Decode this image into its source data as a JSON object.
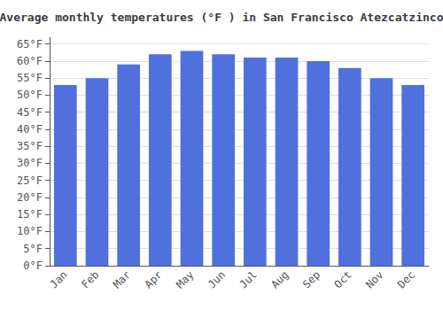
{
  "chart_data": {
    "type": "bar",
    "title": "Average monthly temperatures (°F ) in San Francisco Atezcatzinco",
    "categories": [
      "Jan",
      "Feb",
      "Mar",
      "Apr",
      "May",
      "Jun",
      "Jul",
      "Aug",
      "Sep",
      "Oct",
      "Nov",
      "Dec"
    ],
    "values": [
      53,
      55,
      59,
      62,
      63,
      62,
      61,
      61,
      60,
      58,
      55,
      53
    ],
    "ylim": [
      0,
      67
    ],
    "yticks": [
      {
        "value": 0,
        "label": "0°F"
      },
      {
        "value": 5,
        "label": "5°F"
      },
      {
        "value": 10,
        "label": "10°F"
      },
      {
        "value": 15,
        "label": "15°F"
      },
      {
        "value": 20,
        "label": "20°F"
      },
      {
        "value": 25,
        "label": "25°F"
      },
      {
        "value": 30,
        "label": "30°F"
      },
      {
        "value": 35,
        "label": "35°F"
      },
      {
        "value": 40,
        "label": "40°F"
      },
      {
        "value": 45,
        "label": "45°F"
      },
      {
        "value": 50,
        "label": "50°F"
      },
      {
        "value": 55,
        "label": "55°F"
      },
      {
        "value": 60,
        "label": "60°F"
      },
      {
        "value": 65,
        "label": "65°F"
      }
    ],
    "grid": true
  }
}
